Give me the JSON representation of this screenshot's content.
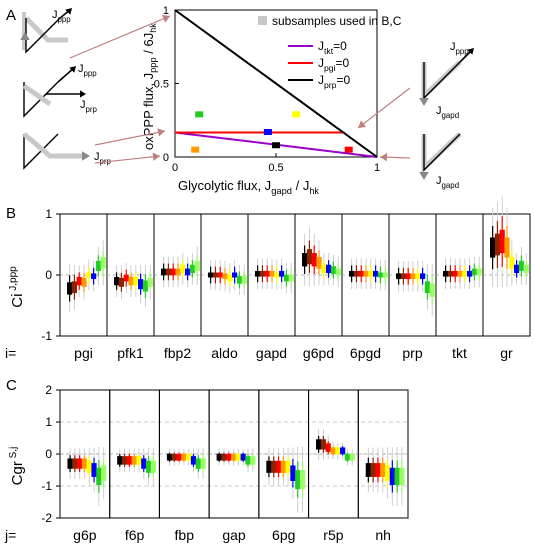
{
  "panel_labels": {
    "a": "A",
    "b": "B",
    "c": "C"
  },
  "colors": {
    "black": "#000000",
    "brown": "#8b2500",
    "red": "#ff0000",
    "orange": "#ff9900",
    "yellow": "#ffff00",
    "blue": "#0000ff",
    "green": "#22cc22",
    "lime": "#99ff66",
    "purple": "#9900cc",
    "grey": "#c8c8c8"
  },
  "diagram_labels": {
    "top_left": "Jppp",
    "mid_left_1": "Jppp",
    "mid_left_2": "Jprp",
    "bottom_left": "Jprp",
    "right_1": "Jppp",
    "right_2": "Jgapd",
    "bottom_right": "Jgapd"
  },
  "chart_data": [
    {
      "type": "line",
      "xlabel": "Glycolytic flux, Jgapd / Jhk",
      "ylabel": "oxPPP flux, Jppp / 6Jhk",
      "xlim": [
        0,
        1
      ],
      "ylim": [
        0,
        1
      ],
      "xticks": [
        "0",
        "0.5",
        "1"
      ],
      "yticks": [
        "0",
        "0.5",
        "1"
      ],
      "legend_position": "top-right",
      "legend": [
        "subsamples used in B,C",
        "Jtkt=0",
        "Jpgi=0",
        "Jprp=0"
      ],
      "series": [
        {
          "name": "Jtkt=0",
          "color": "#9900cc",
          "x": [
            0,
            1
          ],
          "y": [
            0.167,
            0
          ]
        },
        {
          "name": "Jpgi=0",
          "color": "#ff0000",
          "x": [
            0,
            0.84
          ],
          "y": [
            0.167,
            0.167
          ]
        },
        {
          "name": "Jprp=0",
          "color": "#000000",
          "x": [
            0,
            1
          ],
          "y": [
            1,
            0
          ]
        }
      ],
      "markers": [
        {
          "color": "#22cc22",
          "x": 0.12,
          "y": 0.29
        },
        {
          "color": "#ffff00",
          "x": 0.6,
          "y": 0.29
        },
        {
          "color": "#0000ff",
          "x": 0.46,
          "y": 0.17
        },
        {
          "color": "#000000",
          "x": 0.5,
          "y": 0.08
        },
        {
          "color": "#ff9900",
          "x": 0.1,
          "y": 0.05
        },
        {
          "color": "#ff0000",
          "x": 0.86,
          "y": 0.05
        }
      ]
    },
    {
      "type": "bar",
      "ylabel": "Ci J,ppp",
      "row_label": "i=",
      "categories": [
        "pgi",
        "pfk1",
        "fbp2",
        "aldo",
        "gapd",
        "g6pd",
        "6pgd",
        "prp",
        "tkt",
        "gr"
      ],
      "ylim": [
        -1,
        1
      ],
      "yticks": [
        "-1",
        "0",
        "1"
      ],
      "series_colors": [
        "#000000",
        "#8b2500",
        "#ff0000",
        "#ff9900",
        "#ffff00",
        "#0000ff",
        "#22cc22",
        "#99ff66"
      ],
      "medians": [
        [
          -0.22,
          -0.2,
          -0.1,
          -0.12,
          0.0,
          -0.02,
          0.15,
          0.2
        ],
        [
          -0.1,
          -0.12,
          -0.05,
          -0.1,
          -0.1,
          -0.15,
          -0.18,
          -0.12
        ],
        [
          0.05,
          0.05,
          0.05,
          0.05,
          0.1,
          0.05,
          0.1,
          0.15
        ],
        [
          0.0,
          0.0,
          0.0,
          -0.02,
          -0.05,
          0.0,
          -0.08,
          -0.08
        ],
        [
          0.02,
          0.02,
          0.02,
          0.02,
          0.0,
          0.02,
          -0.05,
          -0.05
        ],
        [
          0.25,
          0.3,
          0.25,
          0.2,
          0.1,
          0.1,
          0.08,
          0.05
        ],
        [
          0.02,
          0.02,
          0.02,
          0.02,
          0.02,
          0.02,
          0.0,
          0.0
        ],
        [
          -0.02,
          -0.02,
          -0.02,
          -0.02,
          -0.02,
          -0.02,
          -0.2,
          -0.25
        ],
        [
          0.02,
          0.02,
          0.02,
          0.02,
          0.02,
          0.02,
          0.05,
          0.05
        ],
        [
          0.45,
          0.5,
          0.55,
          0.45,
          0.2,
          0.1,
          0.15,
          0.1
        ]
      ]
    },
    {
      "type": "bar",
      "ylabel": "Cgr S,j",
      "row_label": "j=",
      "categories": [
        "g6p",
        "f6p",
        "fbp",
        "gap",
        "6pg",
        "r5p",
        "nh"
      ],
      "ylim": [
        -2,
        2
      ],
      "yticks": [
        "-2",
        "-1",
        "0",
        "1",
        "2"
      ],
      "series_colors": [
        "#000000",
        "#8b2500",
        "#ff0000",
        "#ff9900",
        "#ffff00",
        "#0000ff",
        "#22cc22",
        "#99ff66"
      ],
      "medians": [
        [
          -0.3,
          -0.3,
          -0.3,
          -0.3,
          -0.4,
          -0.5,
          -0.7,
          -0.6
        ],
        [
          -0.2,
          -0.2,
          -0.2,
          -0.2,
          -0.2,
          -0.3,
          -0.4,
          -0.4
        ],
        [
          -0.1,
          -0.1,
          -0.1,
          -0.1,
          -0.1,
          -0.2,
          -0.3,
          -0.3
        ],
        [
          -0.1,
          -0.1,
          -0.1,
          -0.1,
          -0.1,
          -0.1,
          -0.2,
          -0.2
        ],
        [
          -0.4,
          -0.4,
          -0.4,
          -0.4,
          -0.4,
          -0.6,
          -0.8,
          -0.8
        ],
        [
          0.3,
          0.3,
          0.2,
          0.1,
          0.1,
          0.1,
          -0.1,
          -0.1
        ],
        [
          -0.5,
          -0.5,
          -0.5,
          -0.5,
          -0.6,
          -0.7,
          -0.7,
          -0.7
        ]
      ]
    }
  ]
}
